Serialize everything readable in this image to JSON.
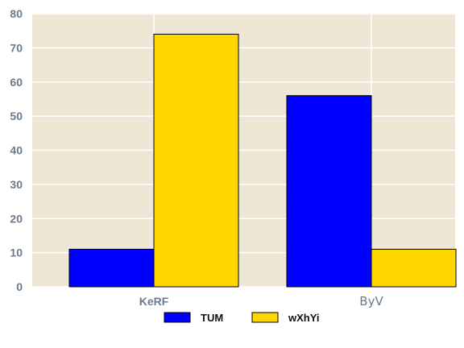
{
  "chart_data": {
    "type": "bar",
    "categories": [
      "KeRF",
      "ByV"
    ],
    "series": [
      {
        "name": "TUM",
        "values": [
          11,
          56
        ],
        "color": "#0000ff"
      },
      {
        "name": "wXhYi",
        "values": [
          74,
          11
        ],
        "color": "#ffd700"
      }
    ],
    "ylim": [
      0,
      80
    ],
    "yticks": [
      0,
      10,
      20,
      30,
      40,
      50,
      60,
      70,
      80
    ],
    "grid": true,
    "legend_position": "bottom-center",
    "background_color": "#efe7d6",
    "grid_color": "#ffffff",
    "tick_label_color": "#6b7b8c"
  }
}
